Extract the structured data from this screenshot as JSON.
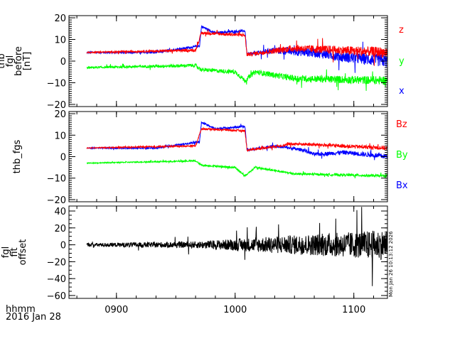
{
  "chart_data": [
    {
      "type": "line",
      "ylabel": [
        "thb",
        "fgl",
        "before",
        "[nT]"
      ],
      "ylim": [
        -21,
        21
      ],
      "yticks": [
        "20",
        "10",
        "0",
        "−10",
        "−20"
      ],
      "ytick_values": [
        20,
        10,
        0,
        -10,
        -20
      ],
      "series": [
        {
          "name": "x",
          "color": "#0000ff",
          "noise": [
            [
              45,
              0.4
            ],
            [
              125,
              0.6
            ],
            [
              150,
              2
            ],
            [
              197,
              3
            ]
          ],
          "points": [
            [
              45,
              4
            ],
            [
              80,
              4
            ],
            [
              95,
              6
            ],
            [
              102,
              7
            ],
            [
              103,
              16
            ],
            [
              110,
              13
            ],
            [
              125,
              14
            ],
            [
              126,
              3
            ],
            [
              140,
              5
            ],
            [
              160,
              4
            ],
            [
              175,
              2
            ],
            [
              197,
              0
            ]
          ]
        },
        {
          "name": "y",
          "color": "#00ff00",
          "noise": [
            [
              45,
              0.4
            ],
            [
              125,
              1
            ],
            [
              150,
              1.5
            ],
            [
              197,
              2
            ]
          ],
          "points": [
            [
              45,
              -3
            ],
            [
              100,
              -2
            ],
            [
              103,
              -4
            ],
            [
              120,
              -5
            ],
            [
              125,
              -9
            ],
            [
              130,
              -5
            ],
            [
              150,
              -8
            ],
            [
              197,
              -9
            ]
          ]
        },
        {
          "name": "z",
          "color": "#ff0000",
          "noise": [
            [
              45,
              0.3
            ],
            [
              125,
              0.8
            ],
            [
              150,
              1.6
            ],
            [
              197,
              2.5
            ]
          ],
          "points": [
            [
              45,
              4
            ],
            [
              100,
              5
            ],
            [
              103,
              13
            ],
            [
              125,
              12
            ],
            [
              126,
              3
            ],
            [
              150,
              6
            ],
            [
              197,
              4
            ]
          ]
        }
      ]
    },
    {
      "type": "line",
      "ylabel": [
        "thb_fgs"
      ],
      "ylim": [
        -21,
        21
      ],
      "yticks": [
        "20",
        "10",
        "0",
        "−10",
        "−20"
      ],
      "ytick_values": [
        20,
        10,
        0,
        -10,
        -20
      ],
      "series": [
        {
          "name": "Bx",
          "color": "#0000ff",
          "noise": [
            [
              45,
              0.3
            ],
            [
              125,
              0.5
            ],
            [
              197,
              1.2
            ]
          ],
          "points": [
            [
              45,
              4
            ],
            [
              80,
              4
            ],
            [
              95,
              6
            ],
            [
              102,
              7
            ],
            [
              103,
              16
            ],
            [
              110,
              13
            ],
            [
              125,
              14
            ],
            [
              126,
              3
            ],
            [
              140,
              5
            ],
            [
              155,
              3
            ],
            [
              160,
              1
            ],
            [
              175,
              2
            ],
            [
              197,
              0
            ]
          ]
        },
        {
          "name": "By",
          "color": "#00ff00",
          "noise": [
            [
              45,
              0.2
            ],
            [
              197,
              0.6
            ]
          ],
          "points": [
            [
              45,
              -3
            ],
            [
              100,
              -2
            ],
            [
              103,
              -4
            ],
            [
              120,
              -5
            ],
            [
              125,
              -9
            ],
            [
              130,
              -5
            ],
            [
              150,
              -8
            ],
            [
              197,
              -9
            ]
          ]
        },
        {
          "name": "Bz",
          "color": "#ff0000",
          "noise": [
            [
              45,
              0.2
            ],
            [
              125,
              0.5
            ],
            [
              197,
              1
            ]
          ],
          "points": [
            [
              45,
              4
            ],
            [
              100,
              5
            ],
            [
              103,
              13
            ],
            [
              125,
              12
            ],
            [
              126,
              3
            ],
            [
              150,
              6
            ],
            [
              197,
              4
            ]
          ]
        }
      ]
    },
    {
      "type": "line",
      "ylabel": [
        "fgl",
        "fit",
        "offset"
      ],
      "ylim": [
        -63.4,
        45.9
      ],
      "yticks": [
        "40",
        "20",
        "0",
        "−20",
        "−40",
        "−60"
      ],
      "ytick_values": [
        40,
        20,
        0,
        -20,
        -40,
        -60
      ],
      "series": [
        {
          "name": "offset",
          "color": "#000000",
          "noise": [
            [
              45,
              2
            ],
            [
              100,
              4
            ],
            [
              140,
              10
            ],
            [
              170,
              14
            ],
            [
              197,
              18
            ]
          ],
          "points": [
            [
              45,
              0
            ],
            [
              197,
              0
            ]
          ]
        }
      ]
    }
  ],
  "xaxis": {
    "xlim_minutes_after_0800": [
      36,
      197
    ],
    "ticks": [
      "0900",
      "1000",
      "1100"
    ],
    "tick_values": [
      60,
      120,
      180
    ],
    "label": "hhmm",
    "date": "2016 Jan 28"
  },
  "timestamp": "Mon Jan 26 10:13:12 2026"
}
